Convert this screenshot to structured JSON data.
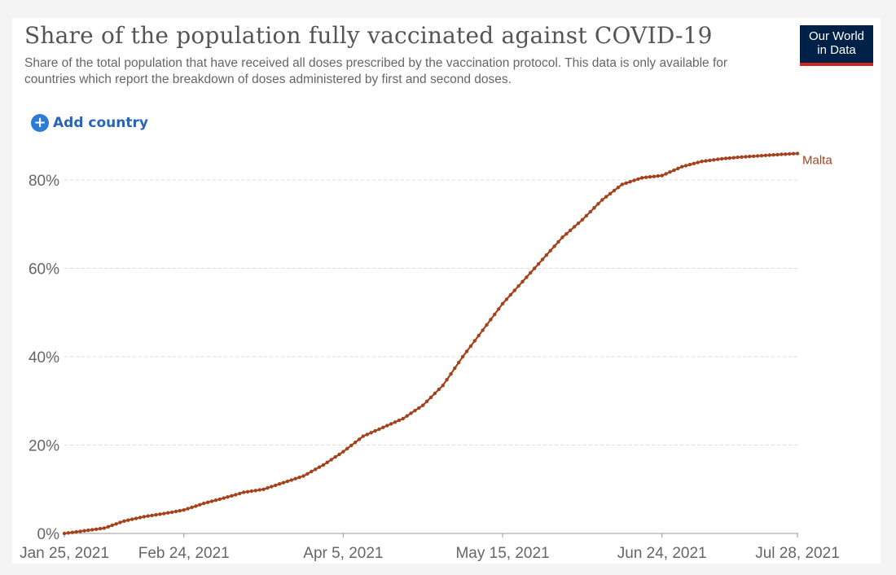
{
  "header": {
    "title": "Share of the population fully vaccinated against COVID-19",
    "subtitle": "Share of the total population that have received all doses prescribed by the vaccination protocol. This data is only available for countries which report the breakdown of doses administered by first and second doses.",
    "logo_line1": "Our World",
    "logo_line2": "in Data"
  },
  "controls": {
    "add_country_label": "Add country",
    "add_icon": "plus-circle-icon"
  },
  "colors": {
    "series": "#a3421c",
    "accent": "#2c7bd6",
    "logo_bg": "#002147",
    "logo_bar": "#ce261e",
    "grid": "#dddddd",
    "text": "#666666"
  },
  "chart_data": {
    "type": "line",
    "title": "Share of the population fully vaccinated against COVID-19",
    "xlabel": "",
    "ylabel": "",
    "x_unit": "days since Jan 25, 2021",
    "xlim": [
      0,
      184
    ],
    "ylim": [
      0,
      80
    ],
    "y_ticks": [
      0,
      20,
      40,
      60,
      80
    ],
    "y_tick_labels": [
      "0%",
      "20%",
      "40%",
      "60%",
      "80%"
    ],
    "x_ticks": [
      0,
      30,
      70,
      110,
      150,
      184
    ],
    "x_tick_labels": [
      "Jan 25, 2021",
      "Feb 24, 2021",
      "Apr 5, 2021",
      "May 15, 2021",
      "Jun 24, 2021",
      "Jul 28, 2021"
    ],
    "grid": true,
    "series": [
      {
        "name": "Malta",
        "x": [
          0,
          10,
          15,
          20,
          25,
          30,
          35,
          40,
          45,
          50,
          55,
          60,
          65,
          70,
          75,
          80,
          85,
          90,
          95,
          100,
          105,
          110,
          115,
          120,
          125,
          130,
          135,
          140,
          145,
          150,
          155,
          160,
          165,
          170,
          175,
          180,
          184
        ],
        "values": [
          0,
          1.2,
          2.8,
          3.8,
          4.5,
          5.3,
          6.8,
          8,
          9.3,
          10,
          11.5,
          13,
          15.5,
          18.5,
          22,
          24,
          26,
          29,
          33.5,
          40,
          46,
          52,
          57,
          62,
          67,
          71,
          75.5,
          79,
          80.5,
          81,
          83,
          84.2,
          84.8,
          85.2,
          85.5,
          85.8,
          86
        ]
      }
    ],
    "end_label": "Malta"
  }
}
